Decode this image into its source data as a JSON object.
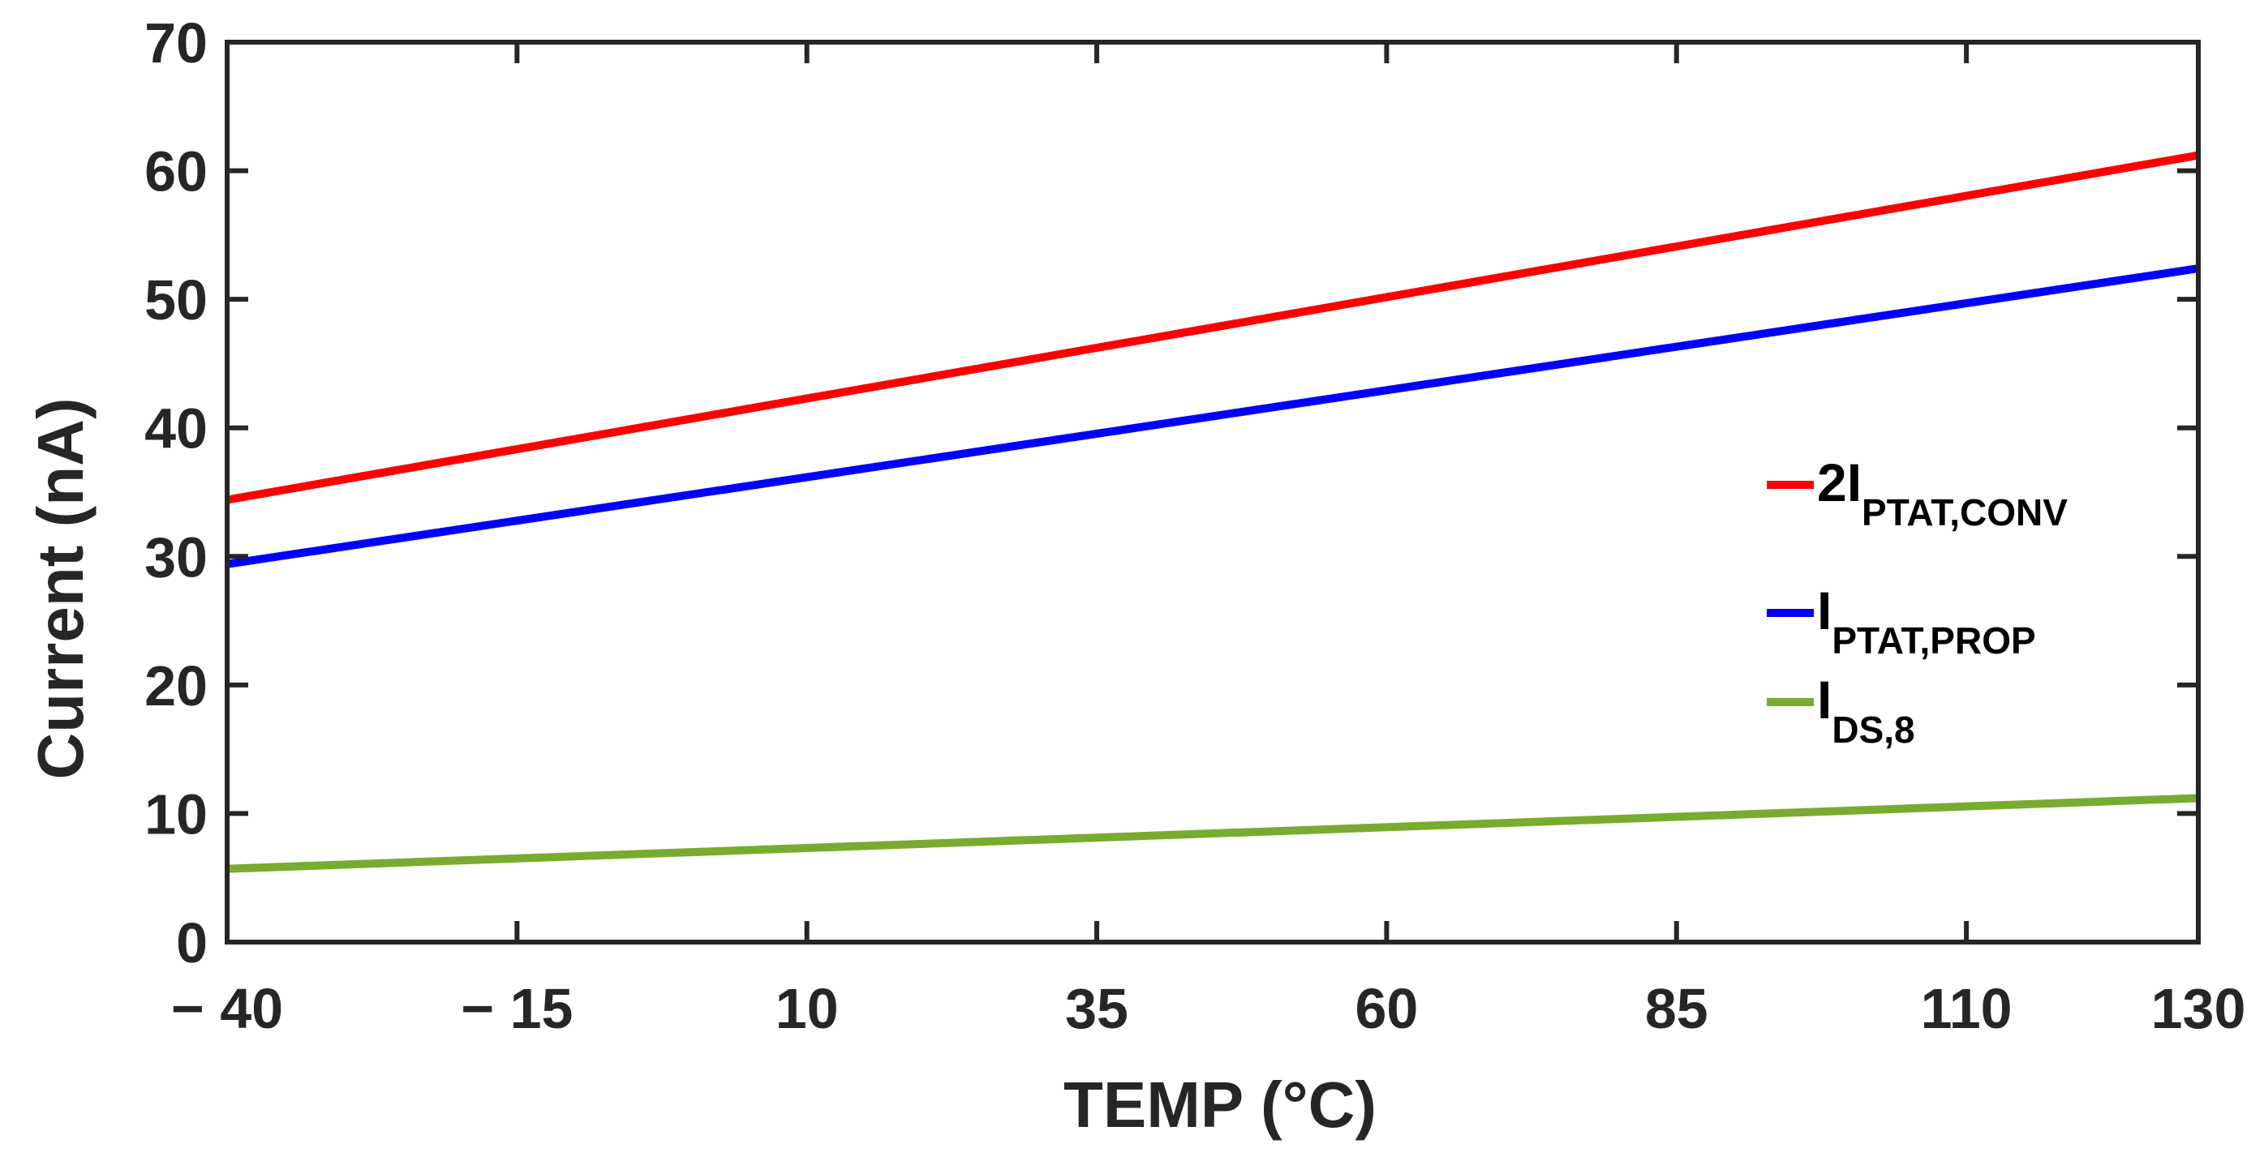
{
  "chart_data": {
    "type": "line",
    "title": "",
    "xlabel": "TEMP (°C)",
    "ylabel": "Current (nA)",
    "xlim": [
      -40,
      130
    ],
    "ylim": [
      0,
      70
    ],
    "x_ticks": [
      -40,
      -15,
      10,
      35,
      60,
      85,
      110,
      130
    ],
    "x_tick_labels": [
      "− 40",
      "− 15",
      "10",
      "35",
      "60",
      "85",
      "110",
      "130"
    ],
    "y_ticks": [
      0,
      10,
      20,
      30,
      40,
      50,
      60,
      70
    ],
    "y_tick_labels": [
      "0",
      "10",
      "20",
      "30",
      "40",
      "50",
      "60",
      "70"
    ],
    "grid": false,
    "legend_position": "right",
    "x": [
      -40,
      130
    ],
    "series": [
      {
        "name": "2IPTAT,CONV",
        "label_main": "2I",
        "label_sub": "PTAT,CONV",
        "color": "#ff0000",
        "values": [
          34.4,
          61.2
        ]
      },
      {
        "name": "IPTAT,PROP",
        "label_main": "I",
        "label_sub": "PTAT,PROP",
        "color": "#0000ff",
        "values": [
          29.4,
          52.4
        ]
      },
      {
        "name": "IDS,8",
        "label_main": "I",
        "label_sub": "DS,8",
        "color": "#77ac30",
        "values": [
          5.7,
          11.2
        ]
      }
    ]
  }
}
